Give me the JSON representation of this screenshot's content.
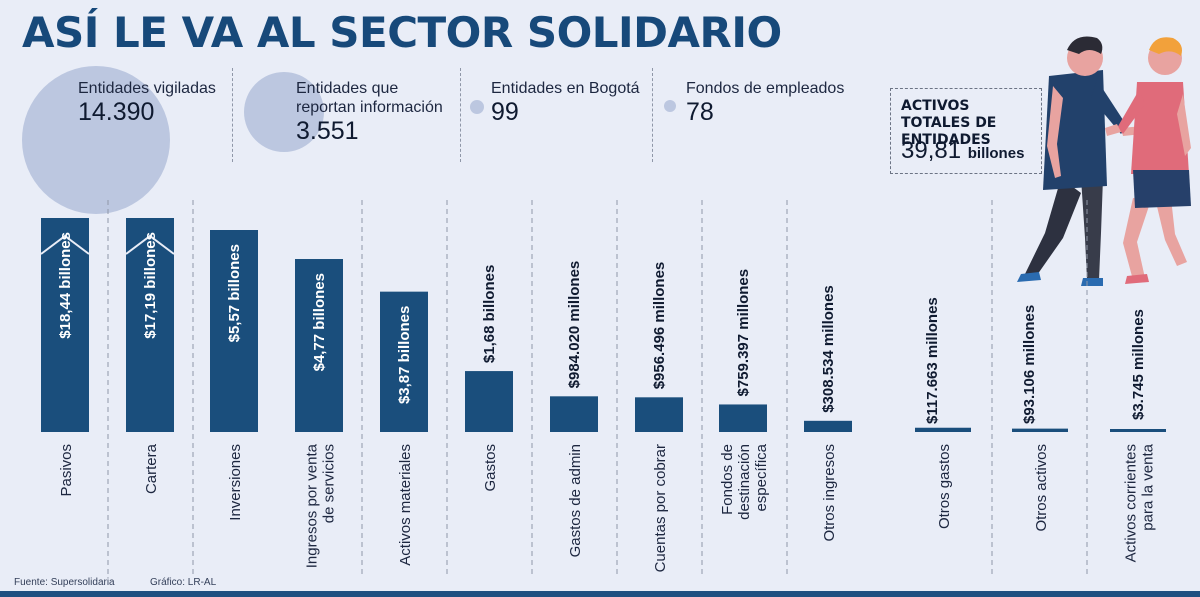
{
  "title": "ASÍ LE VA AL SECTOR SOLIDARIO",
  "stats": [
    {
      "label": "Entidades vigiladas",
      "value": "14.390"
    },
    {
      "label": "Entidades que reportan información",
      "value": "3.551"
    },
    {
      "label": "Entidades en Bogotá",
      "value": "99"
    },
    {
      "label": "Fondos de empleados",
      "value": "78"
    }
  ],
  "total_assets": {
    "label": "ACTIVOS TOTALES DE ENTIDADES",
    "value": "39,81",
    "unit": "billones"
  },
  "chart_data": {
    "type": "bar",
    "categories": [
      "Pasivos",
      "Cartera",
      "Inversiones",
      "Ingresos por venta de servicios",
      "Activos materiales",
      "Gastos",
      "Gastos de admin",
      "Cuentas por cobrar",
      "Fondos de destinación específica",
      "Otros ingresos",
      "Otros gastos",
      "Otros activos",
      "Activos corrientes para la venta"
    ],
    "values": [
      18440000,
      17190000,
      5570000,
      4770000,
      3870000,
      1680000,
      984020,
      956496,
      759397,
      308534,
      117663,
      93106,
      3745
    ],
    "value_unit": "millones de pesos",
    "data_labels": [
      "$18,44 billones",
      "$17,19 billones",
      "$5,57 billones",
      "$4,77 billones",
      "$3,87 billones",
      "$1,68 billones",
      "$984.020 millones",
      "$956.496 millones",
      "$759.397 millones",
      "$308.534 millones",
      "$117.663 millones",
      "$93.106 millones",
      "$3.745 millones"
    ],
    "axis_breaks": [
      "Pasivos",
      "Cartera"
    ],
    "bar_color": "#1a4e7c"
  },
  "footer": {
    "source": "Fuente: Supersolidaria",
    "credit": "Gráfico: LR-AL"
  },
  "colors": {
    "title": "#17497a",
    "bar": "#1a4e7c",
    "circle": "#bcc7e0",
    "background": "#e9edf7"
  }
}
